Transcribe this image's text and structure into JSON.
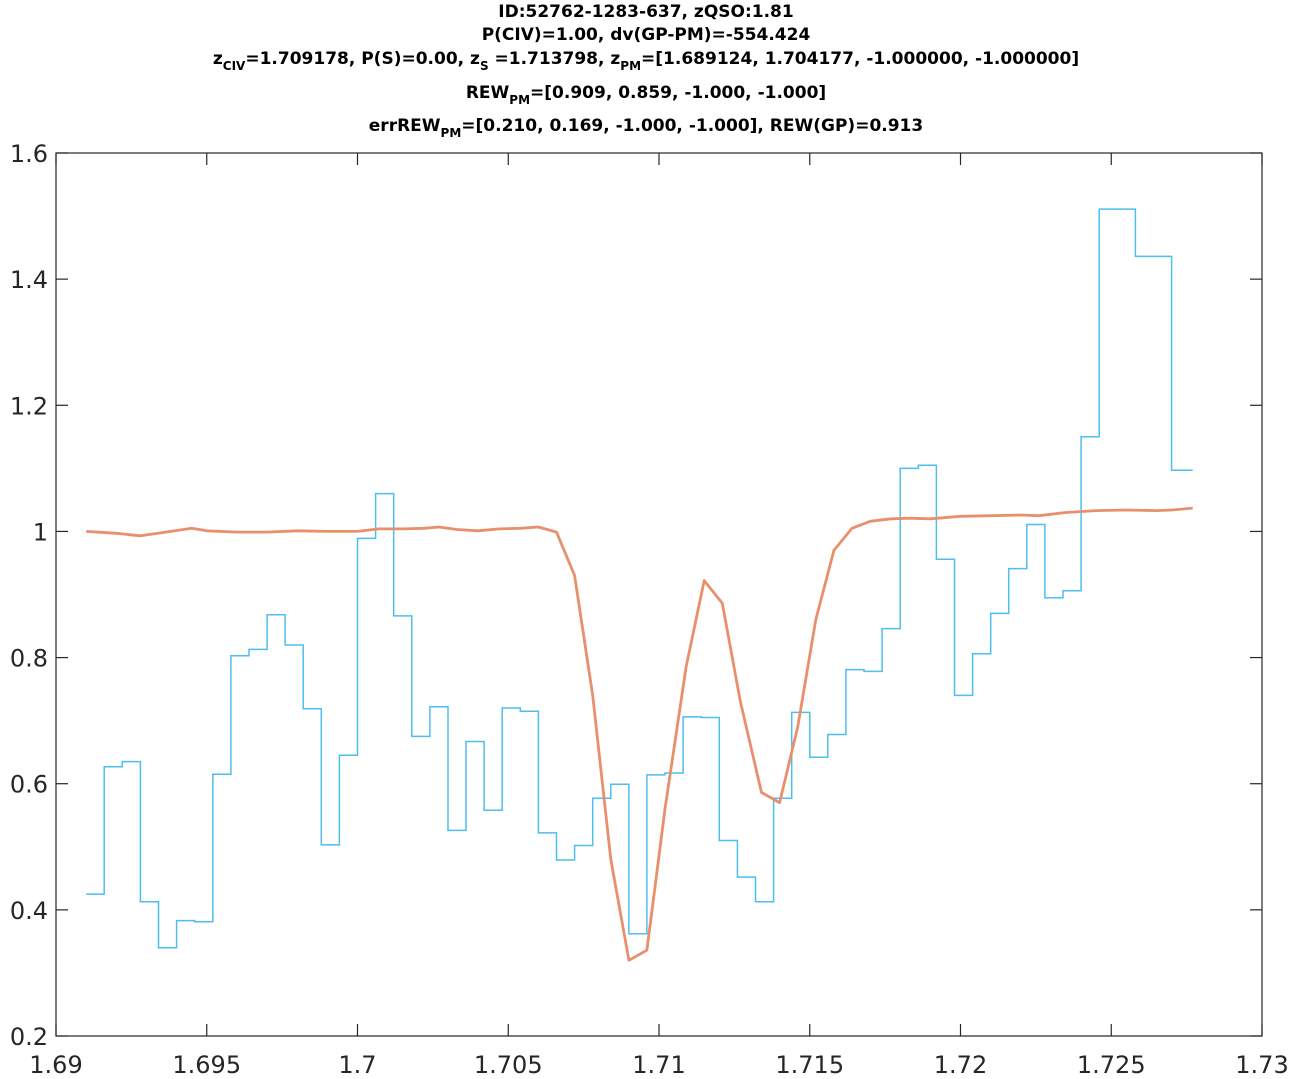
{
  "chart_data": {
    "type": "line",
    "title_lines": [
      [
        {
          "t": "ID:52762-1283-637, zQSO:1.81"
        }
      ],
      [
        {
          "t": "P(CIV)=1.00, dv(GP-PM)=-554.424"
        }
      ],
      [
        {
          "t": "z"
        },
        {
          "t": "CIV",
          "sub": true
        },
        {
          "t": "=1.709178, P(S)=0.00, z"
        },
        {
          "t": "S",
          "sub": true
        },
        {
          "t": " =1.713798, z"
        },
        {
          "t": "PM",
          "sub": true
        },
        {
          "t": "=[1.689124, 1.704177, -1.000000, -1.000000]"
        }
      ],
      [
        {
          "t": "REW"
        },
        {
          "t": "PM",
          "sub": true
        },
        {
          "t": "=[0.909, 0.859, -1.000, -1.000]"
        }
      ],
      [
        {
          "t": "errREW"
        },
        {
          "t": "PM",
          "sub": true
        },
        {
          "t": "=[0.210, 0.169, -1.000, -1.000], REW(GP)=0.913"
        }
      ]
    ],
    "xlim": [
      1.69,
      1.73
    ],
    "ylim": [
      0.2,
      1.6
    ],
    "xticks": [
      1.69,
      1.695,
      1.7,
      1.705,
      1.71,
      1.715,
      1.72,
      1.725,
      1.73
    ],
    "xtick_labels": [
      "1.69",
      "1.695",
      "1.7",
      "1.705",
      "1.71",
      "1.715",
      "1.72",
      "1.725",
      "1.73"
    ],
    "yticks": [
      0.2,
      0.4,
      0.6,
      0.8,
      1.0,
      1.2,
      1.4,
      1.6
    ],
    "ytick_labels": [
      "0.2",
      "0.4",
      "0.6",
      "0.8",
      "1",
      "1.2",
      "1.4",
      "1.6"
    ],
    "grid": false,
    "colors": {
      "flux": "#4DBEEE",
      "model": "#E8906D",
      "axes": "#262626"
    },
    "series": [
      {
        "style": "stairs",
        "color": "#4DBEEE",
        "x": [
          1.691,
          1.6916,
          1.6922,
          1.6928,
          1.6934,
          1.694,
          1.6946,
          1.6952,
          1.6958,
          1.6964,
          1.697,
          1.6976,
          1.6982,
          1.6988,
          1.6994,
          1.7,
          1.7006,
          1.7012,
          1.7018,
          1.7024,
          1.703,
          1.7036,
          1.7042,
          1.7048,
          1.7054,
          1.706,
          1.7066,
          1.7072,
          1.7078,
          1.7084,
          1.709,
          1.7096,
          1.7102,
          1.7108,
          1.7114,
          1.712,
          1.7126,
          1.7132,
          1.7138,
          1.7144,
          1.715,
          1.7156,
          1.7162,
          1.7168,
          1.7174,
          1.718,
          1.7186,
          1.7192,
          1.7198,
          1.7204,
          1.721,
          1.7216,
          1.7222,
          1.7228,
          1.7234,
          1.724,
          1.7246,
          1.7252,
          1.7258,
          1.7264,
          1.727,
          1.7276,
          1.7277
        ],
        "y": [
          0.425,
          0.627,
          0.635,
          0.413,
          0.34,
          0.383,
          0.381,
          0.615,
          0.803,
          0.813,
          0.868,
          0.82,
          0.719,
          0.503,
          0.645,
          0.989,
          1.06,
          0.866,
          0.675,
          0.722,
          0.526,
          0.667,
          0.558,
          0.72,
          0.715,
          0.522,
          0.479,
          0.502,
          0.577,
          0.599,
          0.362,
          0.614,
          0.617,
          0.706,
          0.705,
          0.51,
          0.452,
          0.413,
          0.577,
          0.713,
          0.642,
          0.678,
          0.781,
          0.778,
          0.846,
          1.1,
          1.105,
          0.956,
          0.74,
          0.806,
          0.87,
          0.941,
          1.011,
          0.895,
          0.906,
          1.15,
          1.511,
          1.511,
          1.436,
          1.436,
          1.097,
          1.097,
          1.097
        ]
      },
      {
        "style": "line",
        "color": "#E8906D",
        "x": [
          1.691,
          1.692,
          1.6928,
          1.6935,
          1.6945,
          1.695,
          1.696,
          1.697,
          1.698,
          1.699,
          1.7,
          1.7007,
          1.7015,
          1.7022,
          1.7027,
          1.7033,
          1.704,
          1.7047,
          1.7054,
          1.706,
          1.7066,
          1.7072,
          1.7078,
          1.7084,
          1.709,
          1.7096,
          1.7102,
          1.7109,
          1.7115,
          1.7121,
          1.7127,
          1.7134,
          1.714,
          1.7146,
          1.7152,
          1.7158,
          1.7164,
          1.717,
          1.7177,
          1.7183,
          1.719,
          1.72,
          1.721,
          1.722,
          1.7226,
          1.7235,
          1.7245,
          1.7255,
          1.7265,
          1.727,
          1.7277
        ],
        "y": [
          1.0,
          0.997,
          0.993,
          0.998,
          1.005,
          1.001,
          0.999,
          0.999,
          1.001,
          1.0,
          1.0,
          1.004,
          1.004,
          1.005,
          1.007,
          1.003,
          1.001,
          1.004,
          1.005,
          1.007,
          0.999,
          0.93,
          0.74,
          0.48,
          0.32,
          0.336,
          0.56,
          0.785,
          0.922,
          0.886,
          0.73,
          0.586,
          0.57,
          0.69,
          0.86,
          0.97,
          1.005,
          1.016,
          1.02,
          1.021,
          1.02,
          1.024,
          1.025,
          1.026,
          1.025,
          1.03,
          1.033,
          1.034,
          1.033,
          1.034,
          1.037
        ]
      }
    ]
  }
}
